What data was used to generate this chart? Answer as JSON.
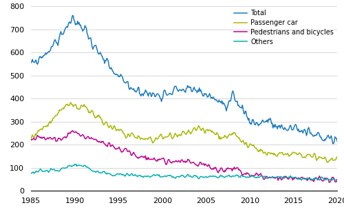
{
  "colors": {
    "total": "#1a7abf",
    "passenger": "#a8b800",
    "pedestrians": "#c0008c",
    "others": "#00b0b0"
  },
  "legend_labels": [
    "Total",
    "Passenger car",
    "Pedestrians and bicycles",
    "Others"
  ],
  "ylim": [
    0,
    800
  ],
  "yticks": [
    0,
    100,
    200,
    300,
    400,
    500,
    600,
    700,
    800
  ],
  "xlim": [
    1985,
    2020
  ],
  "xticks": [
    1985,
    1990,
    1995,
    2000,
    2005,
    2010,
    2015,
    2020
  ],
  "xticklabels": [
    "1985",
    "1990",
    "1995",
    "2000",
    "2005",
    "2010",
    "2015",
    "2020"
  ],
  "grid_color": "#d0d0d0",
  "line_width": 1.1,
  "noise_seed": 99,
  "total_waypoints": [
    [
      1985.0,
      545
    ],
    [
      1985.5,
      555
    ],
    [
      1986.0,
      575
    ],
    [
      1986.5,
      590
    ],
    [
      1987.0,
      610
    ],
    [
      1987.5,
      625
    ],
    [
      1988.0,
      650
    ],
    [
      1988.5,
      678
    ],
    [
      1989.0,
      710
    ],
    [
      1989.5,
      730
    ],
    [
      1990.0,
      735
    ],
    [
      1990.5,
      720
    ],
    [
      1991.0,
      710
    ],
    [
      1991.5,
      680
    ],
    [
      1992.0,
      645
    ],
    [
      1992.5,
      610
    ],
    [
      1993.0,
      578
    ],
    [
      1993.5,
      555
    ],
    [
      1994.0,
      530
    ],
    [
      1994.5,
      510
    ],
    [
      1995.0,
      490
    ],
    [
      1995.5,
      478
    ],
    [
      1996.0,
      462
    ],
    [
      1996.5,
      450
    ],
    [
      1997.0,
      440
    ],
    [
      1997.5,
      432
    ],
    [
      1998.0,
      425
    ],
    [
      1998.5,
      420
    ],
    [
      1999.0,
      415
    ],
    [
      1999.5,
      418
    ],
    [
      2000.0,
      422
    ],
    [
      2000.5,
      428
    ],
    [
      2001.0,
      435
    ],
    [
      2001.5,
      438
    ],
    [
      2002.0,
      440
    ],
    [
      2002.5,
      440
    ],
    [
      2003.0,
      438
    ],
    [
      2003.5,
      435
    ],
    [
      2004.0,
      432
    ],
    [
      2004.5,
      428
    ],
    [
      2005.0,
      420
    ],
    [
      2005.5,
      410
    ],
    [
      2006.0,
      400
    ],
    [
      2006.5,
      390
    ],
    [
      2007.0,
      370
    ],
    [
      2007.3,
      355
    ],
    [
      2007.6,
      360
    ],
    [
      2008.0,
      398
    ],
    [
      2008.5,
      390
    ],
    [
      2009.0,
      365
    ],
    [
      2009.5,
      340
    ],
    [
      2010.0,
      310
    ],
    [
      2010.5,
      295
    ],
    [
      2011.0,
      295
    ],
    [
      2011.5,
      300
    ],
    [
      2012.0,
      305
    ],
    [
      2012.3,
      298
    ],
    [
      2012.6,
      285
    ],
    [
      2013.0,
      275
    ],
    [
      2013.5,
      268
    ],
    [
      2014.0,
      268
    ],
    [
      2014.5,
      272
    ],
    [
      2015.0,
      278
    ],
    [
      2015.5,
      272
    ],
    [
      2016.0,
      260
    ],
    [
      2016.5,
      252
    ],
    [
      2017.0,
      245
    ],
    [
      2017.5,
      240
    ],
    [
      2018.0,
      235
    ],
    [
      2018.5,
      230
    ],
    [
      2019.0,
      228
    ],
    [
      2019.5,
      222
    ],
    [
      2020.4,
      215
    ]
  ],
  "passenger_waypoints": [
    [
      1985.0,
      235
    ],
    [
      1985.5,
      245
    ],
    [
      1986.0,
      258
    ],
    [
      1986.5,
      272
    ],
    [
      1987.0,
      292
    ],
    [
      1987.5,
      315
    ],
    [
      1988.0,
      335
    ],
    [
      1988.5,
      352
    ],
    [
      1989.0,
      365
    ],
    [
      1989.5,
      372
    ],
    [
      1990.0,
      370
    ],
    [
      1990.5,
      362
    ],
    [
      1991.0,
      358
    ],
    [
      1991.5,
      350
    ],
    [
      1992.0,
      338
    ],
    [
      1992.5,
      322
    ],
    [
      1993.0,
      308
    ],
    [
      1993.5,
      295
    ],
    [
      1994.0,
      282
    ],
    [
      1994.5,
      270
    ],
    [
      1995.0,
      260
    ],
    [
      1995.5,
      252
    ],
    [
      1996.0,
      245
    ],
    [
      1996.5,
      240
    ],
    [
      1997.0,
      236
    ],
    [
      1997.5,
      232
    ],
    [
      1998.0,
      228
    ],
    [
      1998.5,
      226
    ],
    [
      1999.0,
      224
    ],
    [
      1999.5,
      225
    ],
    [
      2000.0,
      226
    ],
    [
      2000.5,
      228
    ],
    [
      2001.0,
      232
    ],
    [
      2001.5,
      238
    ],
    [
      2002.0,
      242
    ],
    [
      2002.5,
      248
    ],
    [
      2003.0,
      255
    ],
    [
      2003.5,
      260
    ],
    [
      2004.0,
      265
    ],
    [
      2004.5,
      265
    ],
    [
      2005.0,
      262
    ],
    [
      2005.5,
      258
    ],
    [
      2006.0,
      250
    ],
    [
      2006.5,
      242
    ],
    [
      2007.0,
      236
    ],
    [
      2007.5,
      232
    ],
    [
      2008.0,
      252
    ],
    [
      2008.5,
      245
    ],
    [
      2009.0,
      225
    ],
    [
      2009.5,
      205
    ],
    [
      2010.0,
      190
    ],
    [
      2010.5,
      180
    ],
    [
      2011.0,
      172
    ],
    [
      2011.5,
      168
    ],
    [
      2012.0,
      165
    ],
    [
      2012.5,
      162
    ],
    [
      2013.0,
      158
    ],
    [
      2013.5,
      155
    ],
    [
      2014.0,
      152
    ],
    [
      2014.5,
      150
    ],
    [
      2015.0,
      158
    ],
    [
      2015.5,
      162
    ],
    [
      2016.0,
      158
    ],
    [
      2016.5,
      152
    ],
    [
      2017.0,
      148
    ],
    [
      2017.5,
      145
    ],
    [
      2018.0,
      142
    ],
    [
      2018.5,
      140
    ],
    [
      2019.0,
      138
    ],
    [
      2019.5,
      135
    ],
    [
      2020.4,
      128
    ]
  ],
  "pedestrian_waypoints": [
    [
      1985.0,
      228
    ],
    [
      1985.5,
      230
    ],
    [
      1986.0,
      230
    ],
    [
      1986.5,
      228
    ],
    [
      1987.0,
      228
    ],
    [
      1987.5,
      228
    ],
    [
      1988.0,
      228
    ],
    [
      1988.5,
      230
    ],
    [
      1989.0,
      240
    ],
    [
      1989.5,
      250
    ],
    [
      1990.0,
      250
    ],
    [
      1990.5,
      248
    ],
    [
      1991.0,
      240
    ],
    [
      1991.5,
      232
    ],
    [
      1992.0,
      225
    ],
    [
      1992.5,
      218
    ],
    [
      1993.0,
      210
    ],
    [
      1993.5,
      202
    ],
    [
      1994.0,
      195
    ],
    [
      1994.5,
      188
    ],
    [
      1995.0,
      180
    ],
    [
      1995.5,
      172
    ],
    [
      1996.0,
      165
    ],
    [
      1996.5,
      158
    ],
    [
      1997.0,
      152
    ],
    [
      1997.5,
      148
    ],
    [
      1998.0,
      144
    ],
    [
      1998.5,
      140
    ],
    [
      1999.0,
      137
    ],
    [
      1999.5,
      134
    ],
    [
      2000.0,
      132
    ],
    [
      2000.5,
      130
    ],
    [
      2001.0,
      128
    ],
    [
      2001.5,
      128
    ],
    [
      2002.0,
      128
    ],
    [
      2002.5,
      128
    ],
    [
      2003.0,
      126
    ],
    [
      2003.5,
      124
    ],
    [
      2004.0,
      120
    ],
    [
      2004.5,
      115
    ],
    [
      2005.0,
      108
    ],
    [
      2005.5,
      102
    ],
    [
      2006.0,
      97
    ],
    [
      2006.5,
      93
    ],
    [
      2007.0,
      90
    ],
    [
      2007.3,
      88
    ],
    [
      2007.6,
      92
    ],
    [
      2008.0,
      96
    ],
    [
      2008.5,
      90
    ],
    [
      2009.0,
      78
    ],
    [
      2009.5,
      72
    ],
    [
      2010.0,
      68
    ],
    [
      2010.5,
      65
    ],
    [
      2011.0,
      63
    ],
    [
      2011.5,
      62
    ],
    [
      2012.0,
      60
    ],
    [
      2012.5,
      59
    ],
    [
      2013.0,
      58
    ],
    [
      2013.5,
      57
    ],
    [
      2014.0,
      56
    ],
    [
      2014.5,
      55
    ],
    [
      2015.0,
      54
    ],
    [
      2015.5,
      54
    ],
    [
      2016.0,
      55
    ],
    [
      2016.5,
      53
    ],
    [
      2017.0,
      51
    ],
    [
      2017.5,
      49
    ],
    [
      2018.0,
      48
    ],
    [
      2018.5,
      47
    ],
    [
      2019.0,
      46
    ],
    [
      2019.5,
      45
    ],
    [
      2020.4,
      44
    ]
  ],
  "others_waypoints": [
    [
      1985.0,
      80
    ],
    [
      1985.5,
      82
    ],
    [
      1986.0,
      84
    ],
    [
      1986.5,
      85
    ],
    [
      1987.0,
      87
    ],
    [
      1987.5,
      89
    ],
    [
      1988.0,
      91
    ],
    [
      1988.5,
      95
    ],
    [
      1989.0,
      100
    ],
    [
      1989.5,
      108
    ],
    [
      1990.0,
      112
    ],
    [
      1990.5,
      110
    ],
    [
      1991.0,
      105
    ],
    [
      1991.5,
      98
    ],
    [
      1992.0,
      90
    ],
    [
      1992.5,
      84
    ],
    [
      1993.0,
      80
    ],
    [
      1993.5,
      76
    ],
    [
      1994.0,
      73
    ],
    [
      1994.5,
      71
    ],
    [
      1995.0,
      70
    ],
    [
      1995.5,
      69
    ],
    [
      1996.0,
      68
    ],
    [
      1996.5,
      67
    ],
    [
      1997.0,
      66
    ],
    [
      1997.5,
      65
    ],
    [
      1998.0,
      65
    ],
    [
      1999.0,
      64
    ],
    [
      2000.0,
      63
    ],
    [
      2001.0,
      63
    ],
    [
      2002.0,
      62
    ],
    [
      2003.0,
      62
    ],
    [
      2004.0,
      62
    ],
    [
      2005.0,
      62
    ],
    [
      2006.0,
      62
    ],
    [
      2007.0,
      62
    ],
    [
      2008.0,
      65
    ],
    [
      2009.0,
      62
    ],
    [
      2010.0,
      60
    ],
    [
      2011.0,
      59
    ],
    [
      2012.0,
      58
    ],
    [
      2013.0,
      57
    ],
    [
      2014.0,
      56
    ],
    [
      2015.0,
      55
    ],
    [
      2016.0,
      54
    ],
    [
      2017.0,
      53
    ],
    [
      2018.0,
      52
    ],
    [
      2019.0,
      51
    ],
    [
      2020.4,
      50
    ]
  ]
}
